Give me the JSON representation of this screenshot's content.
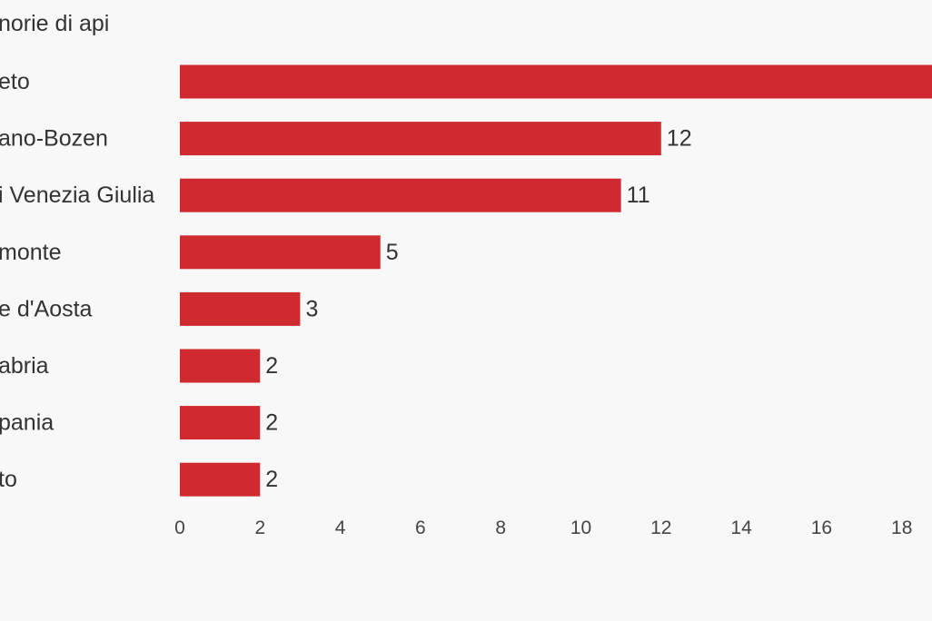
{
  "chart_data": {
    "type": "bar",
    "orientation": "horizontal",
    "title": "norie di api",
    "categories": [
      "eto",
      "ano-Bozen",
      "i Venezia Giulia",
      "monte",
      "e d'Aosta",
      "abria",
      "pania",
      "to"
    ],
    "values": [
      19,
      12,
      11,
      5,
      3,
      2,
      2,
      2
    ],
    "value_labels": [
      "",
      "12",
      "11",
      "5",
      "3",
      "2",
      "2",
      "2"
    ],
    "x_ticks": [
      0,
      2,
      4,
      6,
      8,
      10,
      12,
      14,
      16,
      18
    ],
    "x_tick_labels": [
      "0",
      "2",
      "4",
      "6",
      "8",
      "10",
      "12",
      "14",
      "16",
      "18"
    ],
    "xlim": [
      0,
      18.8
    ],
    "xlabel": "",
    "ylabel": "",
    "grid": false,
    "legend": "none",
    "bar_color": "#cf2a30",
    "background_color": "#f8f8f8"
  }
}
